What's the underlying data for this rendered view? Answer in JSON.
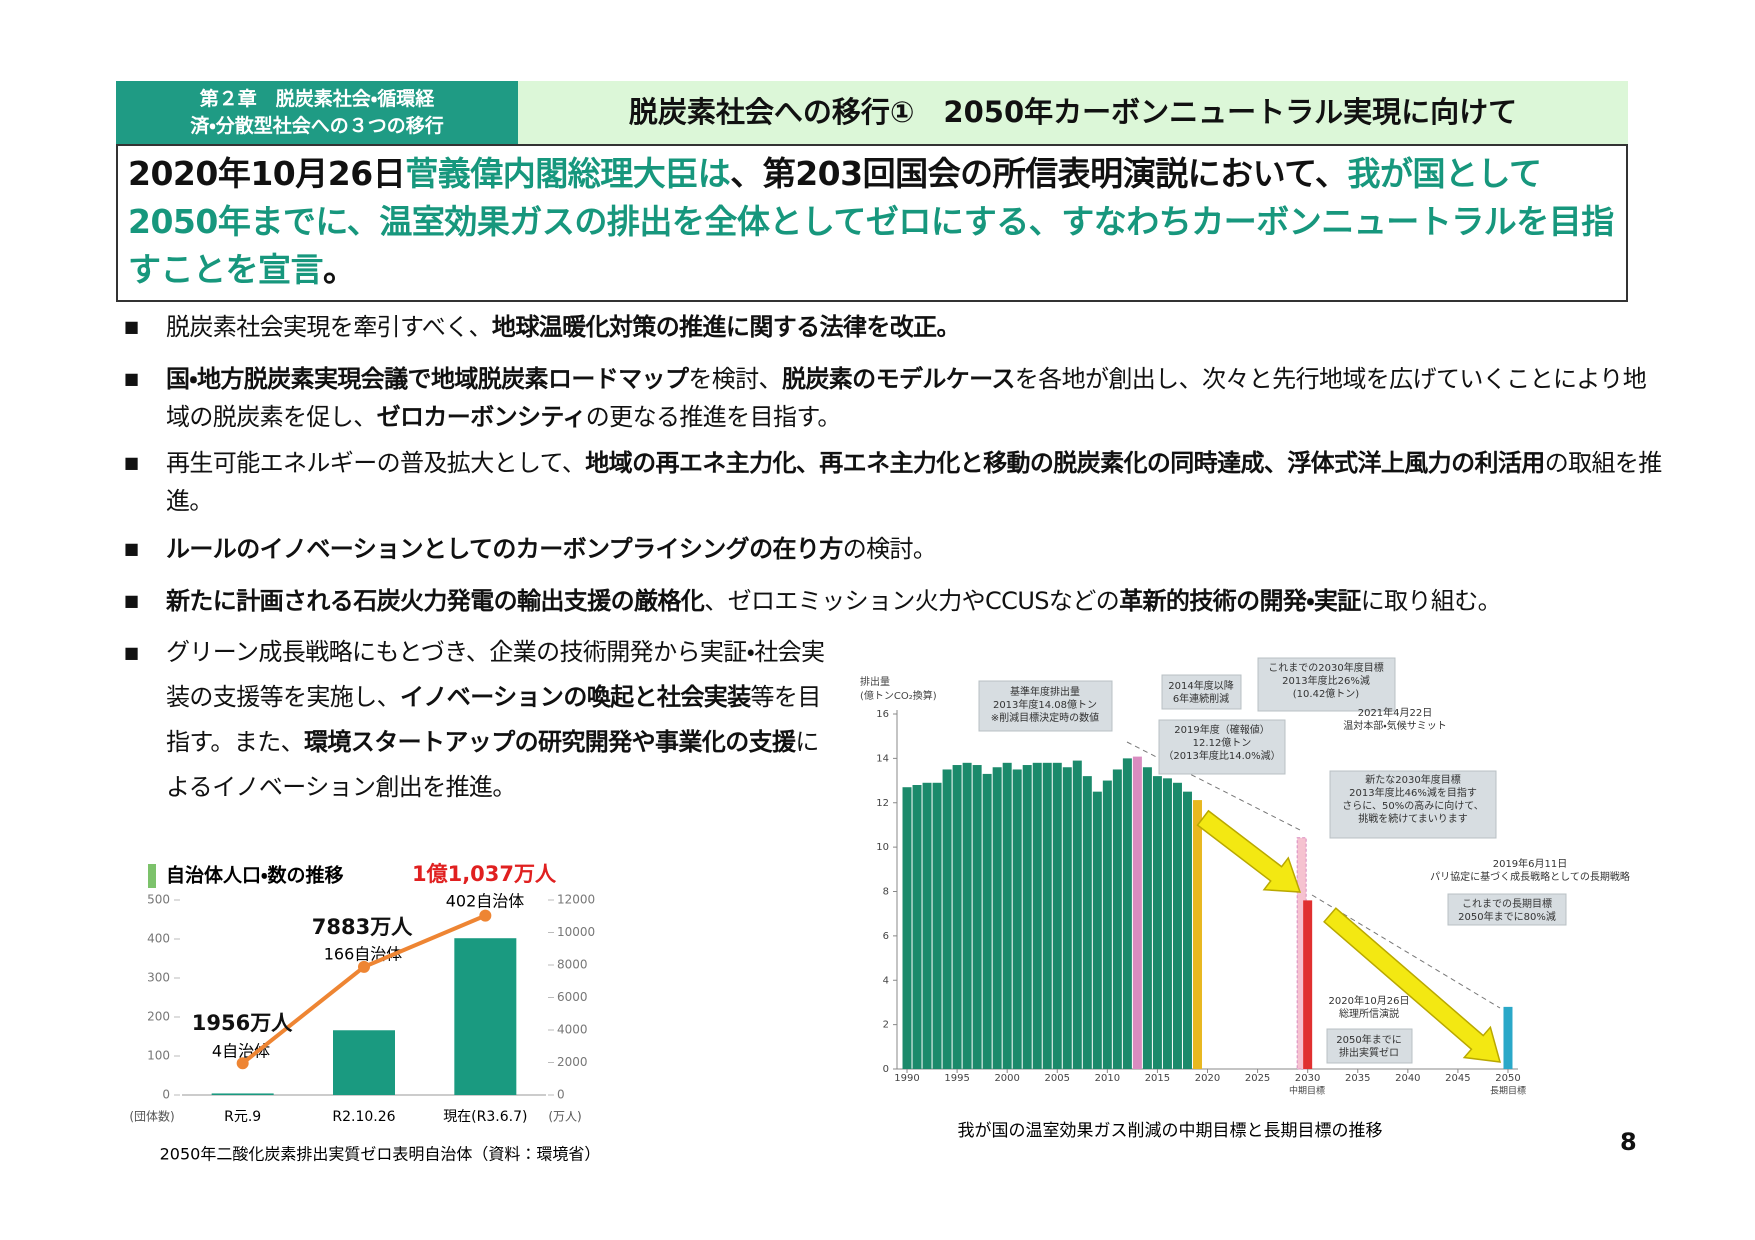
{
  "header": {
    "chapter_lines": [
      "第２章　脱炭素社会・循環経",
      "済・分散型社会への３つの移行"
    ],
    "title": "脱炭素社会への移行①　2050年カーボンニュートラル実現に向けて"
  },
  "lead": [
    {
      "text": "2020年10月26日",
      "color": "#111111"
    },
    {
      "text": "菅義偉内閣総理大臣は",
      "color": "#17977d"
    },
    {
      "text": "、第203回国会の所信表明演説において、",
      "color": "#111111"
    },
    {
      "text": "我が国として2050年までに、温室効果ガスの排出を全体としてゼロにする、すなわちカーボンニュートラルを目指すことを宣言",
      "color": "#17977d"
    },
    {
      "text": "。",
      "color": "#111111"
    }
  ],
  "bullets": [
    [
      {
        "text": "脱炭素社会実現を牽引すべく、",
        "bold": false
      },
      {
        "text": "地球温暖化対策の推進に関する法律を改正。",
        "bold": true
      }
    ],
    [
      {
        "text": "国・地方脱炭素実現会議で地域脱炭素ロードマップ",
        "bold": true
      },
      {
        "text": "を検討、",
        "bold": false
      },
      {
        "text": "脱炭素のモデルケース",
        "bold": true
      },
      {
        "text": "を各地が創出し、次々と先行地域を広げていくことにより地域の脱炭素を促し、",
        "bold": false
      },
      {
        "text": "ゼロカーボンシティ",
        "bold": true
      },
      {
        "text": "の更なる推進を目指す。",
        "bold": false
      }
    ],
    [
      {
        "text": "再生可能エネルギーの普及拡大として、",
        "bold": false
      },
      {
        "text": "地域の再エネ主力化、再エネ主力化と移動の脱炭素化の同時達成、浮体式洋上風力の利活用",
        "bold": true
      },
      {
        "text": "の取組を推進。",
        "bold": false
      }
    ],
    [
      {
        "text": "ルールのイノベーションとしてのカーボンプライシングの在り方",
        "bold": true
      },
      {
        "text": "の検討。",
        "bold": false
      }
    ],
    [
      {
        "text": "新たに計画される石炭火力発電の輸出支援の厳格化",
        "bold": true
      },
      {
        "text": "、ゼロエミッション火力やCCUSなどの",
        "bold": false
      },
      {
        "text": "革新的技術の開発・実証",
        "bold": true
      },
      {
        "text": "に取り組む。",
        "bold": false
      }
    ],
    [
      {
        "text": "グリーン成長戦略にもとづき、企業の技術開発から実証・社会実装の支援等を実施し、",
        "bold": false
      },
      {
        "text": "イノベーションの喚起と社会実装",
        "bold": true
      },
      {
        "text": "等を目指す。また、",
        "bold": false
      },
      {
        "text": "環境スタートアップの研究開発や事業化の支援",
        "bold": true
      },
      {
        "text": "によるイノベーション創出を推進。",
        "bold": false
      }
    ]
  ],
  "chart_data": [
    {
      "type": "bar-line",
      "title": "自治体人口・数の推移",
      "caption": "2050年二酸化炭素排出実質ゼロ表明自治体（資料：環境省）",
      "categories": [
        "R元.9",
        "R2.10.26",
        "現在(R3.6.7)"
      ],
      "ylabel": "(団体数)",
      "y2label": "(万人)",
      "ylim": [
        0,
        500
      ],
      "yticks": [
        0,
        100,
        200,
        300,
        400,
        500
      ],
      "y2lim": [
        0,
        12000
      ],
      "y2ticks": [
        0,
        2000,
        4000,
        6000,
        8000,
        10000,
        12000
      ],
      "series": [
        {
          "kind": "bar",
          "color": "#1a9a80",
          "values": [
            4,
            166,
            402
          ],
          "value_labels": [
            "4自治体",
            "166自治体",
            "402自治体"
          ]
        },
        {
          "kind": "line",
          "axis": "y2",
          "color": "#ee8533",
          "values": [
            1956,
            7883,
            11037
          ],
          "value_labels": [
            "1956万人",
            "7883万人",
            "1億1,037万人"
          ],
          "value_label_colors": [
            "#111111",
            "#111111",
            "#e02020"
          ]
        }
      ]
    },
    {
      "type": "bar",
      "caption": "我が国の温室効果ガス削減の中期目標と長期目標の推移",
      "ylabel_lines": [
        "排出量",
        "(億トンCO₂換算)"
      ],
      "xlim": [
        1989,
        2051
      ],
      "xticks": [
        1990,
        1995,
        2000,
        2005,
        2010,
        2015,
        2020,
        2025,
        2030,
        2035,
        2040,
        2045,
        2050
      ],
      "xtick_notes": [
        "中期目標",
        "長期目標"
      ],
      "ylim": [
        0,
        16
      ],
      "yticks": [
        0,
        2,
        4,
        6,
        8,
        10,
        12,
        14,
        16
      ],
      "series": [
        {
          "color": "#f6c2d0",
          "x": [
            2030
          ],
          "values": [
            10.42
          ]
        },
        {
          "colors": [
            "#1b8a6b",
            "#1b8a6b",
            "#1b8a6b",
            "#1b8a6b",
            "#1b8a6b",
            "#1b8a6b",
            "#1b8a6b",
            "#1b8a6b",
            "#1b8a6b",
            "#1b8a6b",
            "#1b8a6b",
            "#1b8a6b",
            "#1b8a6b",
            "#1b8a6b",
            "#1b8a6b",
            "#1b8a6b",
            "#1b8a6b",
            "#1b8a6b",
            "#1b8a6b",
            "#1b8a6b",
            "#1b8a6b",
            "#1b8a6b",
            "#1b8a6b",
            "#d98cc0",
            "#1b8a6b",
            "#1b8a6b",
            "#1b8a6b",
            "#1b8a6b",
            "#1b8a6b",
            "#e8b820",
            "#e03030",
            "#2aa8c8"
          ],
          "x": [
            1990,
            1991,
            1992,
            1993,
            1994,
            1995,
            1996,
            1997,
            1998,
            1999,
            2000,
            2001,
            2002,
            2003,
            2004,
            2005,
            2006,
            2007,
            2008,
            2009,
            2010,
            2011,
            2012,
            2013,
            2014,
            2015,
            2016,
            2017,
            2018,
            2019,
            2030,
            2050
          ],
          "values": [
            12.7,
            12.8,
            12.9,
            12.9,
            13.5,
            13.7,
            13.8,
            13.7,
            13.3,
            13.6,
            13.8,
            13.5,
            13.7,
            13.8,
            13.8,
            13.8,
            13.6,
            13.9,
            13.2,
            12.5,
            13.0,
            13.5,
            14.0,
            14.08,
            13.6,
            13.2,
            13.1,
            12.9,
            12.5,
            12.12,
            7.6,
            2.8
          ]
        }
      ],
      "annotations": [
        {
          "lines": [
            "基準年度排出量",
            "2013年度14.08億トン",
            "※削減目標決定時の数値"
          ]
        },
        {
          "lines": [
            "2014年度以降",
            "6年連続削減"
          ]
        },
        {
          "lines": [
            "2019年度（確報値）",
            "12.12億トン",
            "（2013年度比14.0%減）"
          ]
        },
        {
          "lines": [
            "これまでの2030年度目標",
            "2013年度比26%減",
            "(10.42億トン)"
          ]
        },
        {
          "lines": [
            "2021年4月22日",
            "温対本部・気候サミット"
          ]
        },
        {
          "lines": [
            "新たな2030年度目標",
            "2013年度比46%減を目指す",
            "さらに、50%の高みに向けて、",
            "挑戦を続けてまいります"
          ]
        },
        {
          "lines": [
            "2019年6月11日",
            "パリ協定に基づく成長戦略としての長期戦略"
          ]
        },
        {
          "lines": [
            "これまでの長期目標",
            "2050年までに80%減"
          ]
        },
        {
          "lines": [
            "2020年10月26日",
            "総理所信演説"
          ]
        },
        {
          "lines": [
            "2050年までに",
            "排出実質ゼロ"
          ]
        }
      ]
    }
  ],
  "page_number": "8"
}
